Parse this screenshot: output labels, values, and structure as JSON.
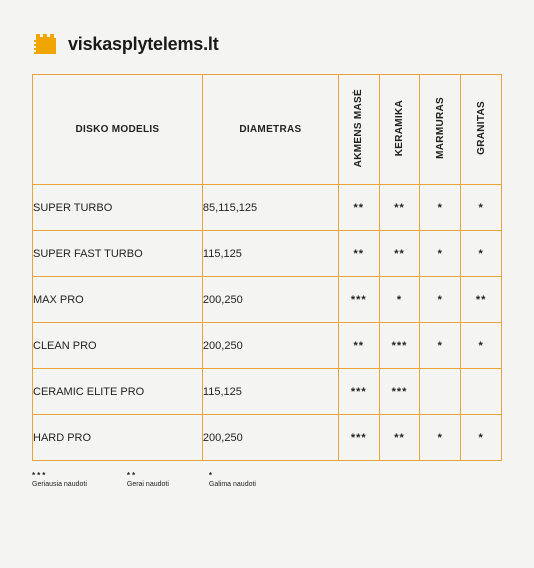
{
  "brand": {
    "text": "viskasplytelems.lt",
    "logo_color": "#f0a500"
  },
  "table": {
    "border_color": "#e8a33a",
    "background_color": "#f4f4f2",
    "headers": {
      "model": "DISKO MODELIS",
      "diameter": "DIAMETRAS",
      "materials": [
        "AKMENS MASĖ",
        "KERAMIKA",
        "MARMURAS",
        "GRANITAS"
      ]
    },
    "rows": [
      {
        "model": "SUPER TURBO",
        "diameter": "85,115,125",
        "ratings": [
          "**",
          "**",
          "*",
          "*"
        ]
      },
      {
        "model": "SUPER FAST TURBO",
        "diameter": "115,125",
        "ratings": [
          "**",
          "**",
          "*",
          "*"
        ]
      },
      {
        "model": "MAX PRO",
        "diameter": "200,250",
        "ratings": [
          "***",
          "*",
          "*",
          "**"
        ]
      },
      {
        "model": "CLEAN PRO",
        "diameter": "200,250",
        "ratings": [
          "**",
          "***",
          "*",
          "*"
        ]
      },
      {
        "model": "CERAMIC ELITE PRO",
        "diameter": "115,125",
        "ratings": [
          "***",
          "***",
          "",
          ""
        ]
      },
      {
        "model": "HARD PRO",
        "diameter": "200,250",
        "ratings": [
          "***",
          "**",
          "*",
          "*"
        ]
      }
    ]
  },
  "legend": [
    {
      "stars": "***",
      "label": "Geriausia naudoti"
    },
    {
      "stars": "**",
      "label": "Gerai naudoti"
    },
    {
      "stars": "*",
      "label": "Galima naudoti"
    }
  ]
}
